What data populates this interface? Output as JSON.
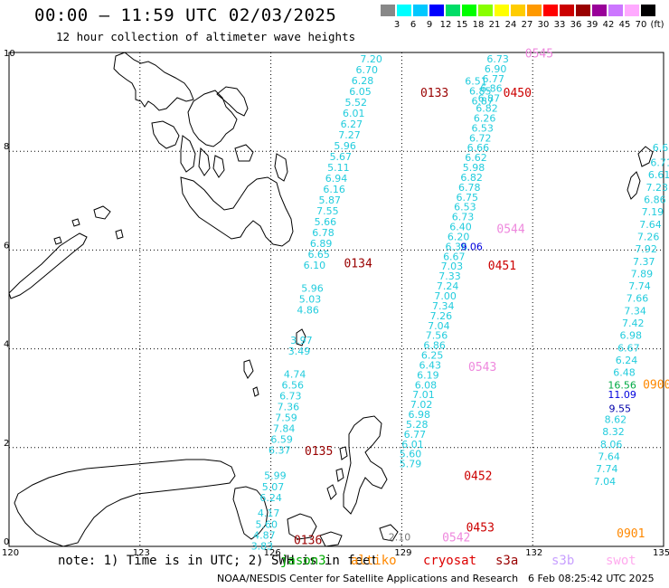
{
  "header": {
    "title": "00:00 — 11:59 UTC 02/03/2025",
    "subtitle": "12 hour collection of altimeter wave heights"
  },
  "color_scale": {
    "labels": [
      "3",
      "6",
      "9",
      "12",
      "15",
      "18",
      "21",
      "24",
      "27",
      "30",
      "33",
      "36",
      "39",
      "42",
      "45",
      "70",
      "(ft)"
    ],
    "colors": [
      "#888888",
      "#00ffff",
      "#00c8ff",
      "#0000ff",
      "#00dd66",
      "#00ff00",
      "#88ff00",
      "#ffff00",
      "#ffcc00",
      "#ff9900",
      "#ff0000",
      "#cc0000",
      "#990000",
      "#990099",
      "#cc77ff",
      "#ffaaff",
      "#000000"
    ]
  },
  "map": {
    "lon_min": 120,
    "lon_max": 135,
    "lat_min": 0,
    "lat_max": 10,
    "x_ticks": [
      "120",
      "123",
      "126",
      "129",
      "132",
      "135"
    ],
    "y_ticks": [
      "0",
      "2",
      "4",
      "6",
      "8",
      "10"
    ],
    "x_tick_values": [
      120,
      123,
      126,
      129,
      132,
      135
    ],
    "y_tick_values": [
      0,
      2,
      4,
      6,
      8,
      10
    ]
  },
  "tracks": [
    {
      "name": "track-a",
      "color": "#22ccdd",
      "points": [
        {
          "lon": 128.3,
          "lat": 9.8,
          "v": "7.20"
        },
        {
          "lon": 128.2,
          "lat": 9.58,
          "v": "6.70"
        },
        {
          "lon": 128.1,
          "lat": 9.36,
          "v": "6.28"
        },
        {
          "lon": 128.05,
          "lat": 9.14,
          "v": "6.05"
        },
        {
          "lon": 127.95,
          "lat": 8.92,
          "v": "5.52"
        },
        {
          "lon": 127.9,
          "lat": 8.7,
          "v": "6.01"
        },
        {
          "lon": 127.85,
          "lat": 8.48,
          "v": "6.27"
        },
        {
          "lon": 127.8,
          "lat": 8.26,
          "v": "7.27"
        },
        {
          "lon": 127.7,
          "lat": 8.04,
          "v": "5.96"
        },
        {
          "lon": 127.6,
          "lat": 7.82,
          "v": "5.67"
        },
        {
          "lon": 127.55,
          "lat": 7.6,
          "v": "5.11"
        },
        {
          "lon": 127.5,
          "lat": 7.38,
          "v": "6.94"
        },
        {
          "lon": 127.45,
          "lat": 7.16,
          "v": "6.16"
        },
        {
          "lon": 127.35,
          "lat": 6.94,
          "v": "5.87"
        },
        {
          "lon": 127.3,
          "lat": 6.72,
          "v": "7.55"
        },
        {
          "lon": 127.25,
          "lat": 6.5,
          "v": "5.66"
        },
        {
          "lon": 127.2,
          "lat": 6.28,
          "v": "6.78"
        },
        {
          "lon": 127.15,
          "lat": 6.06,
          "v": "6.89"
        },
        {
          "lon": 127.1,
          "lat": 5.84,
          "v": "6.65"
        },
        {
          "lon": 127.0,
          "lat": 5.62,
          "v": "6.10"
        },
        {
          "lon": 126.95,
          "lat": 5.16,
          "v": "5.96"
        },
        {
          "lon": 126.9,
          "lat": 4.94,
          "v": "5.03"
        },
        {
          "lon": 126.85,
          "lat": 4.72,
          "v": "4.86"
        },
        {
          "lon": 126.7,
          "lat": 4.1,
          "v": "3.97"
        },
        {
          "lon": 126.65,
          "lat": 3.88,
          "v": "3.49"
        },
        {
          "lon": 126.55,
          "lat": 3.42,
          "v": "4.74"
        },
        {
          "lon": 126.5,
          "lat": 3.2,
          "v": "6.56"
        },
        {
          "lon": 126.45,
          "lat": 2.98,
          "v": "6.73"
        },
        {
          "lon": 126.4,
          "lat": 2.76,
          "v": "7.36"
        },
        {
          "lon": 126.35,
          "lat": 2.54,
          "v": "7.59"
        },
        {
          "lon": 126.3,
          "lat": 2.32,
          "v": "7.84"
        },
        {
          "lon": 126.25,
          "lat": 2.1,
          "v": "6.59"
        },
        {
          "lon": 126.2,
          "lat": 1.88,
          "v": "6.37"
        },
        {
          "lon": 126.1,
          "lat": 1.36,
          "v": "5.99"
        },
        {
          "lon": 126.05,
          "lat": 1.14,
          "v": "5.07"
        },
        {
          "lon": 126.0,
          "lat": 0.92,
          "v": "6.24"
        },
        {
          "lon": 125.95,
          "lat": 0.6,
          "v": "4.17"
        },
        {
          "lon": 125.9,
          "lat": 0.38,
          "v": "5.60"
        },
        {
          "lon": 125.85,
          "lat": 0.16,
          "v": "4.87"
        },
        {
          "lon": 125.8,
          "lat": -0.06,
          "v": "3.83"
        }
      ]
    },
    {
      "name": "track-b",
      "color": "#22ccdd",
      "points": [
        {
          "lon": 131.2,
          "lat": 9.8,
          "v": "6.73"
        },
        {
          "lon": 131.15,
          "lat": 9.6,
          "v": "6.90"
        },
        {
          "lon": 131.1,
          "lat": 9.4,
          "v": "6.77"
        },
        {
          "lon": 131.05,
          "lat": 9.2,
          "v": "6.86"
        },
        {
          "lon": 131.0,
          "lat": 9.0,
          "v": "6.87"
        },
        {
          "lon": 130.95,
          "lat": 8.8,
          "v": "6.82"
        },
        {
          "lon": 130.9,
          "lat": 8.6,
          "v": "6.26"
        },
        {
          "lon": 130.85,
          "lat": 8.4,
          "v": "6.53"
        },
        {
          "lon": 130.8,
          "lat": 8.2,
          "v": "6.72"
        },
        {
          "lon": 130.75,
          "lat": 8.0,
          "v": "6.66"
        },
        {
          "lon": 130.7,
          "lat": 7.8,
          "v": "6.62"
        },
        {
          "lon": 130.65,
          "lat": 7.6,
          "v": "5.98"
        },
        {
          "lon": 130.6,
          "lat": 7.4,
          "v": "6.82"
        },
        {
          "lon": 130.55,
          "lat": 7.2,
          "v": "6.78"
        },
        {
          "lon": 130.5,
          "lat": 7.0,
          "v": "6.75"
        },
        {
          "lon": 130.45,
          "lat": 6.8,
          "v": "6.53"
        },
        {
          "lon": 130.4,
          "lat": 6.6,
          "v": "6.73"
        },
        {
          "lon": 130.35,
          "lat": 6.4,
          "v": "6.40"
        },
        {
          "lon": 130.3,
          "lat": 6.2,
          "v": "6.20"
        },
        {
          "lon": 130.25,
          "lat": 6.0,
          "v": "6.36"
        },
        {
          "lon": 130.2,
          "lat": 5.8,
          "v": "6.67"
        },
        {
          "lon": 130.15,
          "lat": 5.6,
          "v": "7.03"
        },
        {
          "lon": 130.1,
          "lat": 5.4,
          "v": "7.33"
        },
        {
          "lon": 130.05,
          "lat": 5.2,
          "v": "7.24"
        },
        {
          "lon": 130.0,
          "lat": 5.0,
          "v": "7.00"
        },
        {
          "lon": 129.95,
          "lat": 4.8,
          "v": "7.34"
        },
        {
          "lon": 129.9,
          "lat": 4.6,
          "v": "7.26"
        },
        {
          "lon": 129.85,
          "lat": 4.4,
          "v": "7.04"
        },
        {
          "lon": 129.8,
          "lat": 4.2,
          "v": "7.56"
        },
        {
          "lon": 129.75,
          "lat": 4.0,
          "v": "6.86"
        },
        {
          "lon": 129.7,
          "lat": 3.8,
          "v": "6.25"
        },
        {
          "lon": 129.65,
          "lat": 3.6,
          "v": "6.43"
        },
        {
          "lon": 129.6,
          "lat": 3.4,
          "v": "6.19"
        },
        {
          "lon": 129.55,
          "lat": 3.2,
          "v": "6.08"
        },
        {
          "lon": 129.5,
          "lat": 3.0,
          "v": "7.01"
        },
        {
          "lon": 129.45,
          "lat": 2.8,
          "v": "7.02"
        },
        {
          "lon": 129.4,
          "lat": 2.6,
          "v": "6.98"
        },
        {
          "lon": 129.35,
          "lat": 2.4,
          "v": "5.28"
        },
        {
          "lon": 129.3,
          "lat": 2.2,
          "v": "6.77"
        },
        {
          "lon": 129.25,
          "lat": 2.0,
          "v": "6.01"
        },
        {
          "lon": 129.2,
          "lat": 1.8,
          "v": "5.60"
        },
        {
          "lon": 129.2,
          "lat": 1.6,
          "v": "5.79"
        }
      ]
    },
    {
      "name": "track-c",
      "color": "#22ccdd",
      "points": [
        {
          "lon": 135.0,
          "lat": 8.0,
          "v": "6.61"
        },
        {
          "lon": 134.95,
          "lat": 7.7,
          "v": "6.71"
        },
        {
          "lon": 134.9,
          "lat": 7.45,
          "v": "6.61"
        },
        {
          "lon": 134.85,
          "lat": 7.2,
          "v": "7.23"
        },
        {
          "lon": 134.8,
          "lat": 6.95,
          "v": "6.86"
        },
        {
          "lon": 134.75,
          "lat": 6.7,
          "v": "7.19"
        },
        {
          "lon": 134.7,
          "lat": 6.45,
          "v": "7.64"
        },
        {
          "lon": 134.65,
          "lat": 6.2,
          "v": "7.26"
        },
        {
          "lon": 134.6,
          "lat": 5.95,
          "v": "7.92"
        },
        {
          "lon": 134.55,
          "lat": 5.7,
          "v": "7.37"
        },
        {
          "lon": 134.5,
          "lat": 5.45,
          "v": "7.89"
        },
        {
          "lon": 134.45,
          "lat": 5.2,
          "v": "7.74"
        },
        {
          "lon": 134.4,
          "lat": 4.95,
          "v": "7.66"
        },
        {
          "lon": 134.35,
          "lat": 4.7,
          "v": "7.34"
        },
        {
          "lon": 134.3,
          "lat": 4.45,
          "v": "7.42"
        },
        {
          "lon": 134.25,
          "lat": 4.2,
          "v": "6.98"
        },
        {
          "lon": 134.2,
          "lat": 3.95,
          "v": "6.67"
        },
        {
          "lon": 134.15,
          "lat": 3.7,
          "v": "6.24"
        },
        {
          "lon": 134.1,
          "lat": 3.45,
          "v": "6.48"
        },
        {
          "lon": 133.9,
          "lat": 2.5,
          "v": "8.62"
        },
        {
          "lon": 133.85,
          "lat": 2.25,
          "v": "8.32"
        },
        {
          "lon": 133.8,
          "lat": 2.0,
          "v": "8.06"
        },
        {
          "lon": 133.75,
          "lat": 1.75,
          "v": "7.64"
        },
        {
          "lon": 133.7,
          "lat": 1.5,
          "v": "7.74"
        },
        {
          "lon": 133.65,
          "lat": 1.25,
          "v": "7.04"
        }
      ]
    }
  ],
  "special_values": [
    {
      "lon": 134.05,
      "lat": 3.2,
      "v": "16.56",
      "color": "#00aa44"
    },
    {
      "lon": 134.05,
      "lat": 3.0,
      "v": "11.09",
      "color": "#0000dd"
    },
    {
      "lon": 134.0,
      "lat": 2.72,
      "v": "9.55",
      "color": "#0000aa"
    },
    {
      "lon": 130.7,
      "lat": 9.35,
      "v": "6.51",
      "color": "#22ccdd"
    },
    {
      "lon": 130.8,
      "lat": 9.15,
      "v": "6.85",
      "color": "#22ccdd"
    },
    {
      "lon": 130.85,
      "lat": 8.95,
      "v": "6.87",
      "color": "#22ccdd"
    },
    {
      "lon": 130.6,
      "lat": 6.0,
      "v": "9.06",
      "color": "#0000dd"
    },
    {
      "lon": 128.95,
      "lat": 0.12,
      "v": "2.10",
      "color": "#777777"
    }
  ],
  "times": [
    {
      "lon": 129.75,
      "lat": 9.1,
      "v": "0133",
      "color": "#990000"
    },
    {
      "lon": 128.0,
      "lat": 5.65,
      "v": "0134",
      "color": "#990000"
    },
    {
      "lon": 127.1,
      "lat": 1.85,
      "v": "0135",
      "color": "#990000"
    },
    {
      "lon": 126.85,
      "lat": 0.05,
      "v": "0136",
      "color": "#990000"
    },
    {
      "lon": 132.15,
      "lat": 9.9,
      "v": "0545",
      "color": "#ee88dd"
    },
    {
      "lon": 131.65,
      "lat": 9.1,
      "v": "0450",
      "color": "#cc0000"
    },
    {
      "lon": 131.5,
      "lat": 6.35,
      "v": "0544",
      "color": "#ee88dd"
    },
    {
      "lon": 131.3,
      "lat": 5.6,
      "v": "0451",
      "color": "#cc0000"
    },
    {
      "lon": 130.85,
      "lat": 3.55,
      "v": "0543",
      "color": "#ee88dd"
    },
    {
      "lon": 130.75,
      "lat": 1.35,
      "v": "0452",
      "color": "#cc0000"
    },
    {
      "lon": 130.8,
      "lat": 0.3,
      "v": "0453",
      "color": "#cc0000"
    },
    {
      "lon": 130.25,
      "lat": 0.1,
      "v": "0542",
      "color": "#ee88dd"
    },
    {
      "lon": 134.85,
      "lat": 3.2,
      "v": "0900",
      "color": "#ff8800"
    },
    {
      "lon": 134.25,
      "lat": 0.18,
      "v": "0901",
      "color": "#ff8800"
    }
  ],
  "footer": {
    "note": "note: 1) Time is in UTC; 2) SWH is in feet",
    "legend": [
      {
        "label": "jason3",
        "color": "#00aa00"
      },
      {
        "label": "altiko",
        "color": "#ff8800"
      },
      {
        "label": "cryosat",
        "color": "#dd0000"
      },
      {
        "label": "s3a",
        "color": "#990000"
      },
      {
        "label": "s3b",
        "color": "#c8a0ff"
      },
      {
        "label": "swot",
        "color": "#ffaaee"
      }
    ],
    "credit": "NOAA/NESDIS Center for Satellite Applications and Research",
    "timestamp": "6 Feb 08:25:42 UTC 2025"
  }
}
